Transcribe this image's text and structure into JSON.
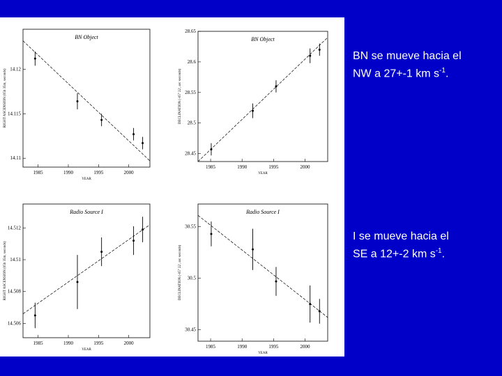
{
  "chart_data": [
    {
      "type": "scatter",
      "title": "BN Object",
      "xlabel": "YEAR",
      "ylabel": "RIGHT ASCENSION (05h 35m, seconds)",
      "x": [
        1984.5,
        1991.5,
        1995.5,
        2000.8,
        2002.3
      ],
      "values": [
        14.1212,
        14.1164,
        14.1143,
        14.1127,
        14.1117
      ],
      "errors": [
        0.0008,
        0.0009,
        0.0007,
        0.0007,
        0.0007
      ],
      "fit": {
        "x": [
          1982.5,
          2003.5
        ],
        "y": [
          14.1232,
          14.1097
        ]
      },
      "xlim": [
        1982.5,
        2003.5
      ],
      "ylim": [
        14.109,
        14.1245
      ],
      "xticks": [
        1985,
        1990,
        1995,
        2000
      ],
      "yticks": [
        14.11,
        14.115,
        14.12
      ]
    },
    {
      "type": "scatter",
      "title": "BN Object",
      "xlabel": "YEAR",
      "ylabel": "DECLINATION (-05° 22', arc seconds)",
      "x": [
        1985.1,
        1991.7,
        1995.4,
        2000.8,
        2002.3
      ],
      "values": [
        28.457,
        28.52,
        28.56,
        28.61,
        28.62
      ],
      "errors": [
        0.01,
        0.012,
        0.01,
        0.012,
        0.01
      ],
      "fit": {
        "x": [
          1983,
          2003.6
        ],
        "y": [
          28.437,
          28.64
        ]
      },
      "xlim": [
        1983,
        2003.6
      ],
      "ylim": [
        28.437,
        28.65
      ],
      "xticks": [
        1985,
        1990,
        1995,
        2000
      ],
      "yticks": [
        28.45,
        28.5,
        28.55,
        28.6,
        28.65
      ]
    },
    {
      "type": "scatter",
      "title": "Radio Source I",
      "xlabel": "YEAR",
      "ylabel": "RIGHT ASCENSION (05h 35m, seconds)",
      "x": [
        1984.5,
        1991.5,
        1995.5,
        2000.8,
        2002.3
      ],
      "values": [
        14.5065,
        14.5086,
        14.5105,
        14.5112,
        14.5119
      ],
      "errors": [
        0.0008,
        0.0017,
        0.0009,
        0.0009,
        0.0008
      ],
      "fit": {
        "x": [
          1982.5,
          2003.5
        ],
        "y": [
          14.5066,
          14.5122
        ]
      },
      "xlim": [
        1982.5,
        2003.5
      ],
      "ylim": [
        14.5051,
        14.5135
      ],
      "xticks": [
        1985,
        1990,
        1995,
        2000
      ],
      "yticks": [
        14.506,
        14.508,
        14.51,
        14.512
      ]
    },
    {
      "type": "scatter",
      "title": "Radio Source I",
      "xlabel": "YEAR",
      "ylabel": "DECLINATION (-05° 22', arc seconds)",
      "x": [
        1985.1,
        1991.7,
        1995.4,
        2000.8,
        2002.3
      ],
      "values": [
        30.543,
        30.528,
        30.497,
        30.475,
        30.468
      ],
      "errors": [
        0.012,
        0.02,
        0.014,
        0.018,
        0.012
      ],
      "fit": {
        "x": [
          1983,
          2003.6
        ],
        "y": [
          30.561,
          30.462
        ]
      },
      "xlim": [
        1983,
        2003.6
      ],
      "ylim": [
        30.439,
        30.572
      ],
      "xticks": [
        1985,
        1990,
        1995,
        2000
      ],
      "yticks": [
        30.45,
        30.5,
        30.55
      ]
    }
  ],
  "notes": [
    {
      "line1": "BN se mueve hacia el",
      "line2": "NW a 27+-1 km s",
      "sup": "-1",
      "end": "."
    },
    {
      "line1": "I se mueve hacia el",
      "line2": "SE a 12+-2 km s",
      "sup": "-1",
      "end": "."
    }
  ]
}
